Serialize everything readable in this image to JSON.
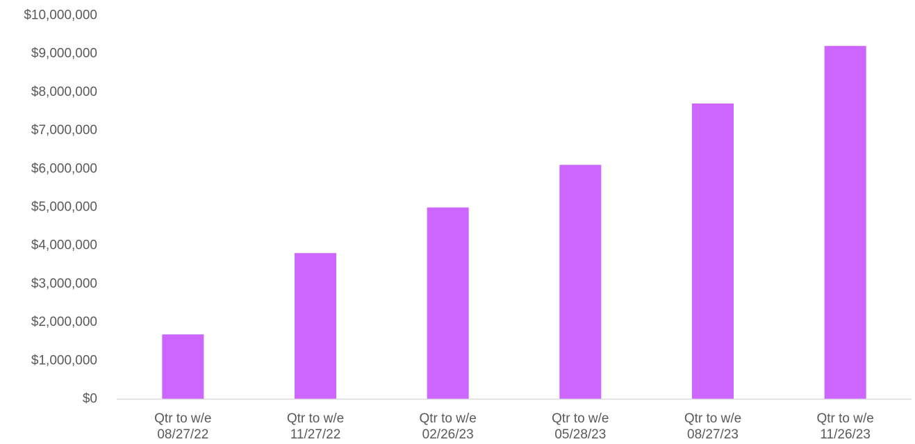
{
  "chart_data": {
    "type": "bar",
    "title": "",
    "xlabel": "",
    "ylabel": "",
    "categories": [
      [
        "Qtr to w/e",
        "08/27/22"
      ],
      [
        "Qtr to w/e",
        "11/27/22"
      ],
      [
        "Qtr to w/e",
        "02/26/23"
      ],
      [
        "Qtr to w/e",
        "05/28/23"
      ],
      [
        "Qtr to w/e",
        "08/27/23"
      ],
      [
        "Qtr to w/e",
        "11/26/23"
      ]
    ],
    "values": [
      1680000,
      3800000,
      4990000,
      6100000,
      7700000,
      9200000
    ],
    "ylim": [
      0,
      10000000
    ],
    "yticks": [
      {
        "value": 0,
        "label": "$0"
      },
      {
        "value": 1000000,
        "label": "$1,000,000"
      },
      {
        "value": 2000000,
        "label": "$2,000,000"
      },
      {
        "value": 3000000,
        "label": "$3,000,000"
      },
      {
        "value": 4000000,
        "label": "$4,000,000"
      },
      {
        "value": 5000000,
        "label": "$5,000,000"
      },
      {
        "value": 6000000,
        "label": "$6,000,000"
      },
      {
        "value": 7000000,
        "label": "$7,000,000"
      },
      {
        "value": 8000000,
        "label": "$8,000,000"
      },
      {
        "value": 9000000,
        "label": "$9,000,000"
      },
      {
        "value": 10000000,
        "label": "$10,000,000"
      }
    ],
    "grid": false,
    "legend": "none",
    "colors": {
      "bar": "#CC66FF",
      "axis": "#D9D9D9",
      "text": "#595959"
    }
  }
}
